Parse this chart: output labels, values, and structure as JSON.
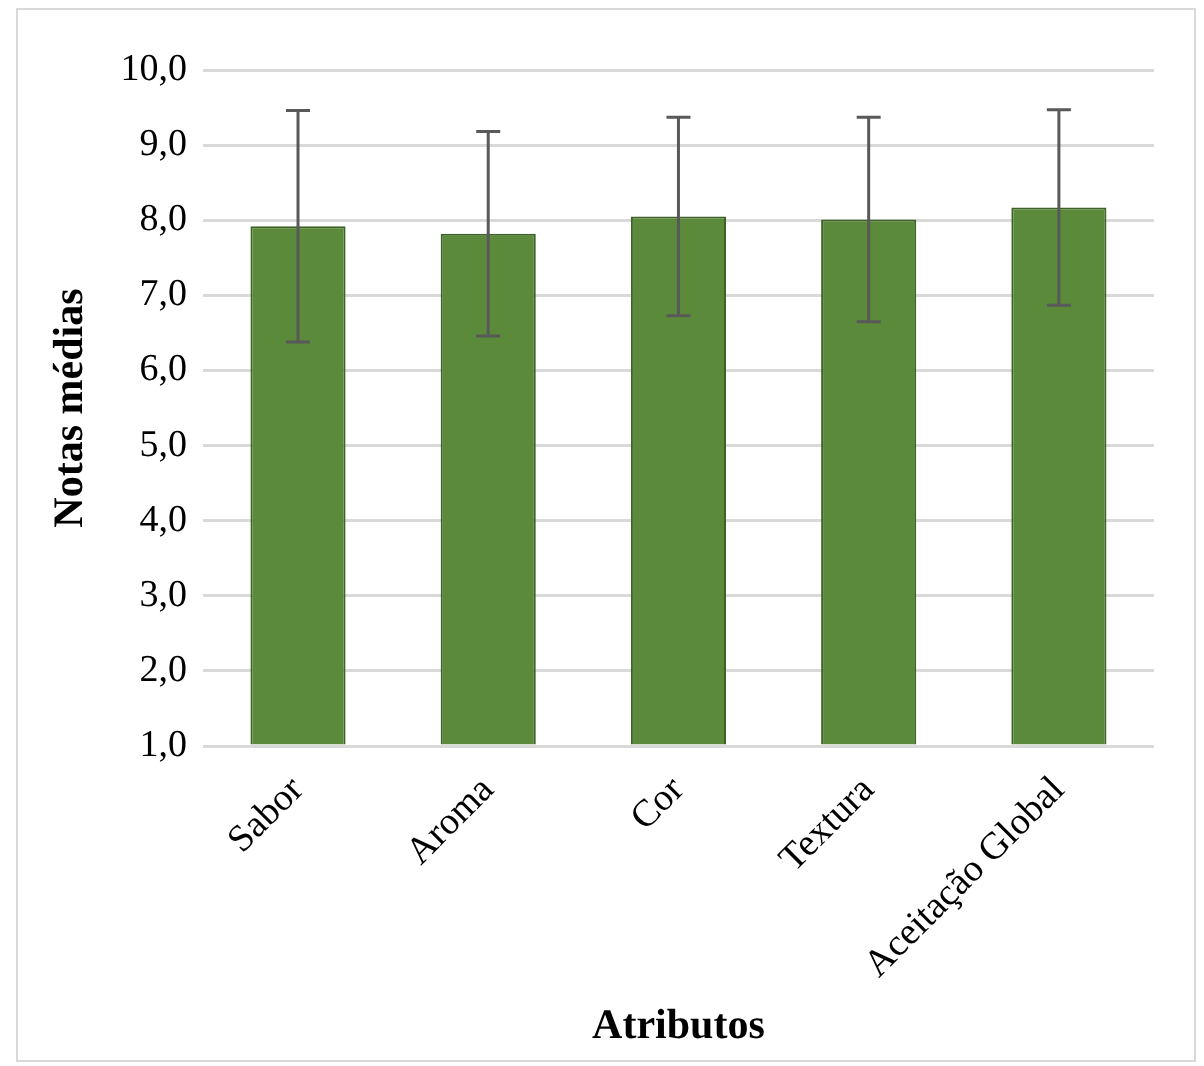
{
  "chart_data": {
    "type": "bar",
    "xlabel": "Atributos",
    "ylabel": "Notas médias",
    "categories": [
      "Sabor",
      "Aroma",
      "Cor",
      "Textura",
      "Aceitação Global"
    ],
    "values": [
      7.92,
      7.82,
      8.05,
      8.01,
      8.17
    ],
    "errors": [
      1.54,
      1.36,
      1.32,
      1.36,
      1.3
    ],
    "color": "#5b8a3a",
    "ylim": [
      1,
      10
    ],
    "yticks": [
      {
        "value": 1,
        "label": "1,0"
      },
      {
        "value": 2,
        "label": "2,0"
      },
      {
        "value": 3,
        "label": "3,0"
      },
      {
        "value": 4,
        "label": "4,0"
      },
      {
        "value": 5,
        "label": "5,0"
      },
      {
        "value": 6,
        "label": "6,0"
      },
      {
        "value": 7,
        "label": "7,0"
      },
      {
        "value": 8,
        "label": "8,0"
      },
      {
        "value": 9,
        "label": "9,0"
      },
      {
        "value": 10,
        "label": "10,0"
      }
    ],
    "grid": "y",
    "legend": false
  }
}
